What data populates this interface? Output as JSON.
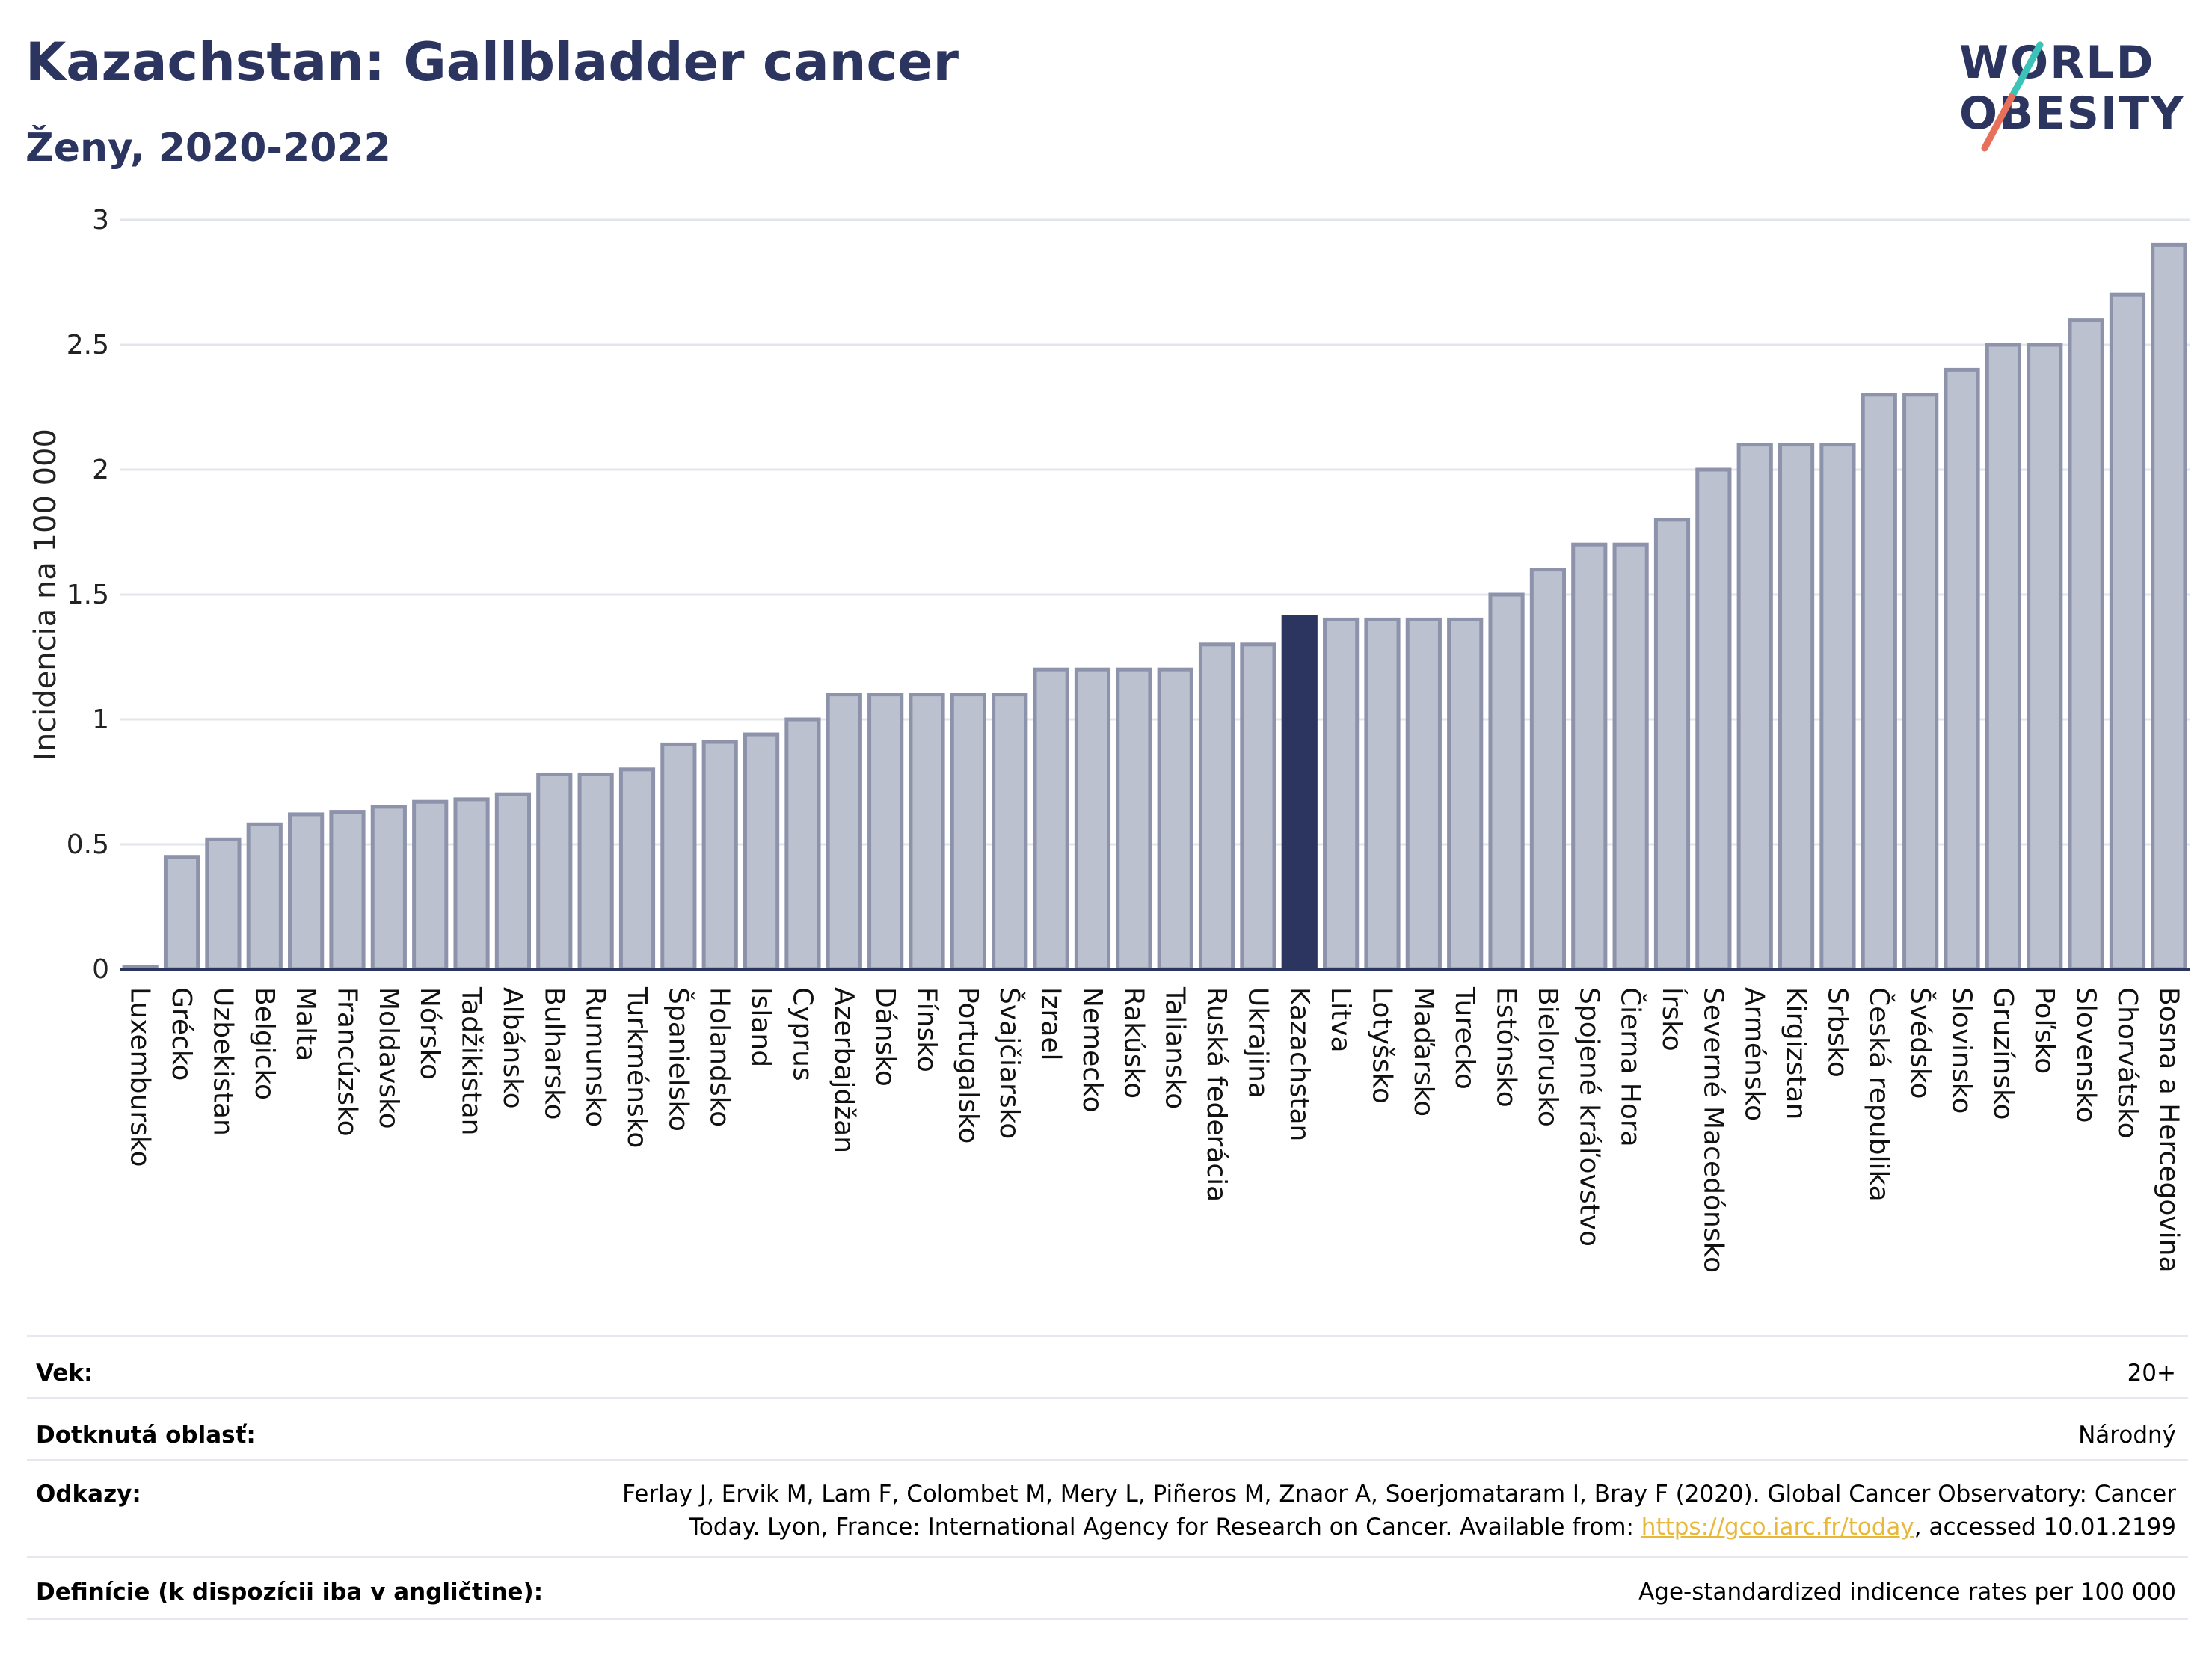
{
  "header": {
    "title": "Kazachstan: Gallbladder cancer",
    "subtitle": "Ženy, 2020-2022"
  },
  "logo": {
    "line1": "WORLD",
    "line2": "OBESITY",
    "colors": {
      "text": "#2b3560",
      "slash_top": "#3cc3b8",
      "slash_bottom": "#e8705a"
    }
  },
  "chart_data": {
    "type": "bar",
    "ylabel": "Incidencia na 100 000",
    "ylim": [
      0,
      3
    ],
    "yticks": [
      "0",
      "0.5",
      "1",
      "1.5",
      "2",
      "2.5",
      "3"
    ],
    "highlight": "Kazachstan",
    "colors": {
      "bar": "#bcc1d0",
      "bar_edge": "#8d93ab",
      "highlight": "#2b3560",
      "grid": "#e3e5ec"
    },
    "categories": [
      "Luxembursko",
      "Grécko",
      "Uzbekistan",
      "Belgicko",
      "Malta",
      "Francúzsko",
      "Moldavsko",
      "Nórsko",
      "Tadžikistan",
      "Albánsko",
      "Bulharsko",
      "Rumunsko",
      "Turkménsko",
      "Španielsko",
      "Holandsko",
      "Island",
      "Cyprus",
      "Azerbajdžan",
      "Dánsko",
      "Fínsko",
      "Portugalsko",
      "Švajčiarsko",
      "Izrael",
      "Nemecko",
      "Rakúsko",
      "Taliansko",
      "Ruská federácia",
      "Ukrajina",
      "Kazachstan",
      "Litva",
      "Lotyšsko",
      "Maďarsko",
      "Turecko",
      "Estónsko",
      "Bielorusko",
      "Spojené kráľovstvo",
      "Čierna Hora",
      "Írsko",
      "Severné Macedónsko",
      "Arménsko",
      "Kirgizstan",
      "Srbsko",
      "Česká republika",
      "Švédsko",
      "Slovinsko",
      "Gruzínsko",
      "Poľsko",
      "Slovensko",
      "Chorvátsko",
      "Bosna a Hercegovina"
    ],
    "values": [
      0.01,
      0.45,
      0.52,
      0.58,
      0.62,
      0.63,
      0.65,
      0.67,
      0.68,
      0.7,
      0.78,
      0.78,
      0.8,
      0.9,
      0.91,
      0.94,
      1.0,
      1.1,
      1.1,
      1.1,
      1.1,
      1.1,
      1.2,
      1.2,
      1.2,
      1.2,
      1.3,
      1.3,
      1.41,
      1.4,
      1.4,
      1.4,
      1.4,
      1.5,
      1.6,
      1.7,
      1.7,
      1.8,
      2.0,
      2.1,
      2.1,
      2.1,
      2.3,
      2.3,
      2.4,
      2.5,
      2.5,
      2.6,
      2.7,
      2.9
    ]
  },
  "footer": {
    "age_label": "Vek:",
    "age_value": "20+",
    "area_label": "Dotknutá oblasť:",
    "area_value": "Národný",
    "refs_label": "Odkazy:",
    "refs_line1": "Ferlay J, Ervik M, Lam F, Colombet M, Mery L, Piñeros M, Znaor A, Soerjomataram I, Bray F (2020). Global Cancer Observatory: Cancer",
    "refs_line2_pre": "Today. Lyon, France: International Agency for Research on Cancer. Available from: ",
    "refs_link": "https://gco.iarc.fr/today",
    "refs_line2_post": ", accessed 10.01.2199",
    "def_label": "Definície (k dispozícii iba v angličtine):",
    "def_value": "Age-standardized indicence rates per 100 000"
  }
}
